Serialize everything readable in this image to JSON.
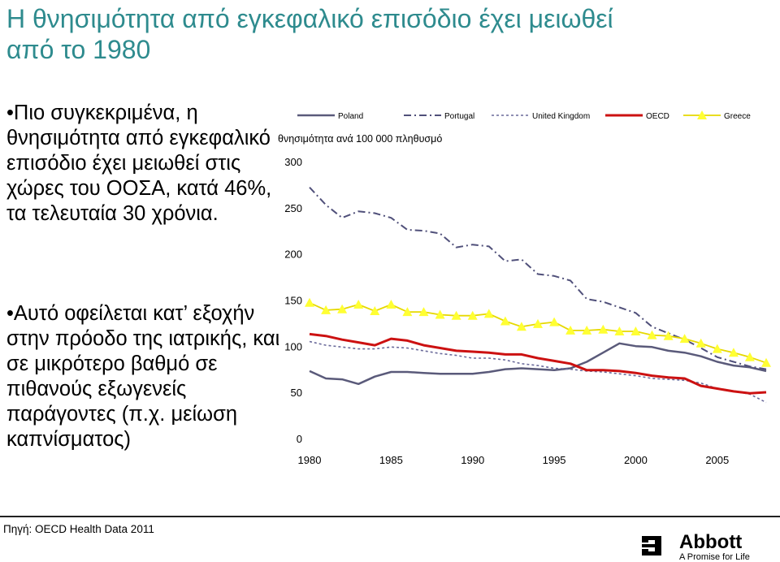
{
  "title": "Η θνησιμότητα από εγκεφαλικό επισόδιο έχει μειωθεί από το 1980",
  "bullets": [
    "•Πιο συγκεκριμένα, η θνησιμότητα από εγκεφαλικό επισόδιο έχει μειωθεί στις χώρες του ΟΟΣΑ, κατά 46%, τα τελευταία 30 χρόνια.",
    "•Αυτό οφείλεται κατ’ εξοχήν στην πρόοδο της ιατρικής, και σε μικρότερο βαθμό σε πιθανούς εξωγενείς παράγοντες (π.χ. μείωση καπνίσματος)"
  ],
  "source": "Πηγή: OECD Health Data 2011",
  "logo": {
    "name": "Abbott",
    "tagline": "A Promise for Life"
  },
  "chart_data": {
    "type": "line",
    "ylabel": "θνησιμότητα ανά 100 000 πληθυσμό",
    "ylim": [
      0,
      300
    ],
    "yticks": [
      0,
      50,
      100,
      150,
      200,
      250,
      300
    ],
    "xticks": [
      1980,
      1985,
      1990,
      1995,
      2000,
      2005
    ],
    "x": [
      1980,
      1981,
      1982,
      1983,
      1984,
      1985,
      1986,
      1987,
      1988,
      1989,
      1990,
      1991,
      1992,
      1993,
      1994,
      1995,
      1996,
      1997,
      1998,
      1999,
      2000,
      2001,
      2002,
      2003,
      2004,
      2005,
      2006,
      2007,
      2008
    ],
    "legend_position": "top",
    "grid": false,
    "series": [
      {
        "name": "Poland",
        "color": "#5a5a7a",
        "style": "solid",
        "values": [
          74,
          66,
          65,
          60,
          68,
          73,
          73,
          72,
          71,
          71,
          71,
          73,
          76,
          77,
          76,
          75,
          77,
          84,
          94,
          104,
          101,
          100,
          96,
          94,
          90,
          84,
          80,
          78,
          74
        ]
      },
      {
        "name": "Portugal",
        "color": "#50507a",
        "style": "dashdot",
        "values": [
          273,
          254,
          240,
          247,
          245,
          240,
          227,
          226,
          223,
          208,
          211,
          209,
          193,
          195,
          179,
          177,
          172,
          152,
          149,
          143,
          137,
          122,
          115,
          108,
          99,
          89,
          84,
          79,
          76
        ]
      },
      {
        "name": "United Kingdom",
        "color": "#6a6a9a",
        "style": "dotted",
        "values": [
          106,
          102,
          100,
          98,
          98,
          100,
          99,
          96,
          93,
          91,
          88,
          88,
          86,
          82,
          80,
          77,
          76,
          74,
          73,
          71,
          69,
          66,
          65,
          64,
          61,
          55,
          52,
          49,
          40
        ]
      },
      {
        "name": "OECD",
        "color": "#cc1111",
        "style": "solid",
        "values": [
          114,
          112,
          108,
          105,
          102,
          109,
          107,
          102,
          99,
          96,
          95,
          94,
          92,
          92,
          88,
          85,
          82,
          75,
          75,
          74,
          72,
          69,
          67,
          66,
          58,
          55,
          52,
          50,
          51
        ]
      },
      {
        "name": "Greece",
        "color": "#e6d800",
        "style": "triangle",
        "values": [
          148,
          140,
          141,
          146,
          139,
          146,
          138,
          138,
          135,
          134,
          134,
          136,
          128,
          122,
          125,
          127,
          118,
          118,
          119,
          117,
          117,
          113,
          112,
          109,
          104,
          98,
          94,
          89,
          83
        ]
      }
    ]
  }
}
